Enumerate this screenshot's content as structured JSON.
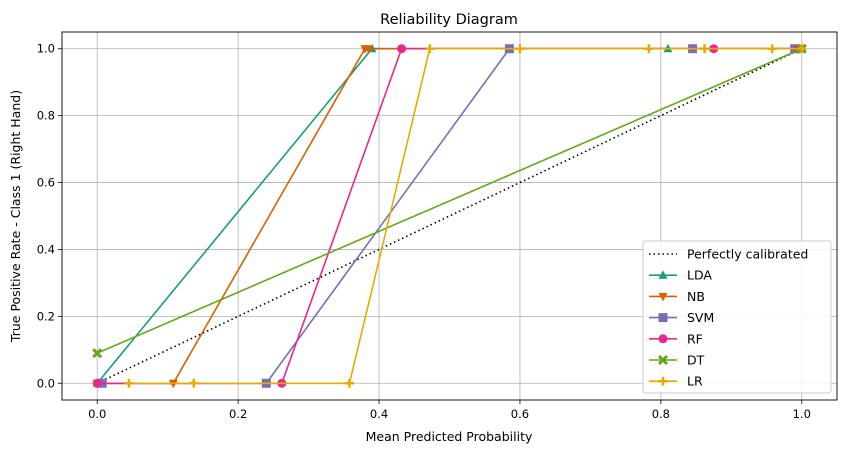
{
  "chart_data": {
    "type": "line",
    "title": "Reliability Diagram",
    "xlabel": "Mean Predicted Probability",
    "ylabel": "True Positive Rate - Class 1 (Right Hand)",
    "xlim": [
      -0.05,
      1.05
    ],
    "ylim": [
      -0.05,
      1.05
    ],
    "xticks": [
      0.0,
      0.2,
      0.4,
      0.6,
      0.8,
      1.0
    ],
    "xtick_labels": [
      "0.0",
      "0.2",
      "0.4",
      "0.6",
      "0.8",
      "1.0"
    ],
    "yticks": [
      0.0,
      0.2,
      0.4,
      0.6,
      0.8,
      1.0
    ],
    "ytick_labels": [
      "0.0",
      "0.2",
      "0.4",
      "0.6",
      "0.8",
      "1.0"
    ],
    "grid": true,
    "legend_position": "lower-right",
    "reference": {
      "name": "Perfectly calibrated",
      "color": "#000000",
      "style": "dotted",
      "x": [
        0,
        1
      ],
      "y": [
        0,
        1
      ]
    },
    "series": [
      {
        "name": "LDA",
        "color": "#1b9e77",
        "marker": "triangle-up",
        "x": [
          0.0,
          0.39,
          0.81,
          0.995,
          1.0
        ],
        "y": [
          0.0,
          1.0,
          1.0,
          1.0,
          1.0
        ]
      },
      {
        "name": "NB",
        "color": "#d95f02",
        "marker": "triangle-down",
        "x": [
          0.0,
          0.108,
          0.38,
          0.385,
          0.995
        ],
        "y": [
          0.0,
          0.0,
          1.0,
          1.0,
          1.0
        ]
      },
      {
        "name": "SVM",
        "color": "#7570b3",
        "marker": "square",
        "x": [
          0.007,
          0.24,
          0.585,
          0.845,
          0.99
        ],
        "y": [
          0.0,
          0.0,
          1.0,
          1.0,
          1.0
        ]
      },
      {
        "name": "RF",
        "color": "#e7298a",
        "marker": "circle",
        "x": [
          0.0,
          0.262,
          0.432,
          0.875,
          0.995
        ],
        "y": [
          0.0,
          0.0,
          1.0,
          1.0,
          1.0
        ]
      },
      {
        "name": "DT",
        "color": "#66a61e",
        "marker": "x",
        "x": [
          0.0,
          1.0
        ],
        "y": [
          0.09,
          1.0
        ]
      },
      {
        "name": "LR",
        "color": "#e6ab02",
        "marker": "plus",
        "x": [
          0.045,
          0.137,
          0.358,
          0.472,
          0.6,
          0.783,
          0.862,
          0.958,
          1.0
        ],
        "y": [
          0.0,
          0.0,
          0.0,
          1.0,
          1.0,
          1.0,
          1.0,
          1.0,
          1.0
        ]
      }
    ]
  }
}
